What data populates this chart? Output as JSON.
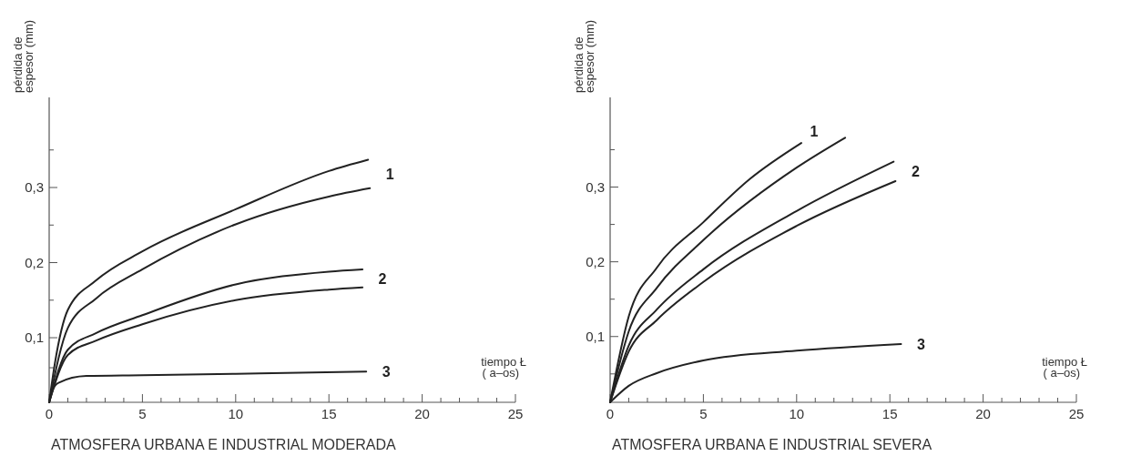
{
  "chart_data": [
    {
      "type": "line",
      "title": "ATMOSFERA URBANA E INDUSTRIAL MODERADA",
      "xlabel": "tiempo Ł\n( a–os)",
      "ylabel": "pérdida de\nespesor (mm)",
      "xlim": [
        0,
        25
      ],
      "ylim": [
        0.014,
        0.42
      ],
      "xticks": [
        0,
        {
          "value": 1,
          "label": null
        },
        {
          "value": 2,
          "label": null
        },
        {
          "value": 3,
          "label": null
        },
        {
          "value": 4,
          "label": null
        },
        5,
        {
          "value": 6,
          "label": null
        },
        {
          "value": 7,
          "label": null
        },
        {
          "value": 8,
          "label": null
        },
        {
          "value": 9,
          "label": null
        },
        10,
        {
          "value": 11,
          "label": null
        },
        {
          "value": 12,
          "label": null
        },
        {
          "value": 13,
          "label": null
        },
        {
          "value": 14,
          "label": null
        },
        15,
        {
          "value": 16,
          "label": null
        },
        {
          "value": 17,
          "label": null
        },
        {
          "value": 18,
          "label": null
        },
        {
          "value": 19,
          "label": null
        },
        20,
        {
          "value": 21,
          "label": null
        },
        {
          "value": 22,
          "label": null
        },
        {
          "value": 23,
          "label": null
        },
        {
          "value": 24,
          "label": null
        },
        25
      ],
      "yticks": [
        {
          "value": 0.06,
          "label": null
        },
        {
          "value": 0.1,
          "label": "0,1"
        },
        {
          "value": 0.15,
          "label": null
        },
        {
          "value": 0.2,
          "label": "0,2"
        },
        {
          "value": 0.25,
          "label": null
        },
        {
          "value": 0.3,
          "label": "0,3"
        },
        {
          "value": 0.35,
          "label": null
        }
      ],
      "grid": false,
      "line_style": "solid",
      "series": [
        {
          "color": "#222222",
          "x": [
            0,
            0.3,
            1,
            2.5,
            5,
            10,
            15,
            17.1
          ],
          "values": [
            0.014,
            0.065,
            0.137,
            0.176,
            0.215,
            0.271,
            0.322,
            0.337
          ]
        },
        {
          "color": "#222222",
          "x": [
            0,
            1,
            2.5,
            5,
            10,
            15,
            17.2
          ],
          "values": [
            0.014,
            0.113,
            0.152,
            0.191,
            0.251,
            0.288,
            0.299
          ]
        },
        {
          "color": "#222222",
          "x": [
            0,
            1,
            2.5,
            5,
            10,
            15,
            16.8
          ],
          "values": [
            0.014,
            0.084,
            0.106,
            0.13,
            0.171,
            0.188,
            0.191
          ]
        },
        {
          "color": "#222222",
          "x": [
            0,
            1,
            2.5,
            5,
            10,
            15,
            16.8
          ],
          "values": [
            0.014,
            0.077,
            0.096,
            0.118,
            0.15,
            0.164,
            0.167
          ]
        },
        {
          "color": "#222222",
          "x": [
            0,
            0.2,
            0.5,
            2,
            5,
            10,
            17
          ],
          "values": [
            0.014,
            0.031,
            0.04,
            0.049,
            0.05,
            0.052,
            0.055
          ]
        }
      ],
      "annotations": [
        "1",
        "2",
        "3"
      ]
    },
    {
      "type": "line",
      "title": "ATMOSFERA URBANA E INDUSTRIAL SEVERA",
      "xlabel": "tiempo Ł\n( a–os)",
      "ylabel": "pérdida de\nespesor (mm)",
      "xlim": [
        0,
        25
      ],
      "ylim": [
        0.012,
        0.42
      ],
      "xticks": [
        0,
        {
          "value": 1,
          "label": null
        },
        {
          "value": 2,
          "label": null
        },
        {
          "value": 3,
          "label": null
        },
        {
          "value": 4,
          "label": null
        },
        5,
        {
          "value": 6,
          "label": null
        },
        {
          "value": 7,
          "label": null
        },
        {
          "value": 8,
          "label": null
        },
        {
          "value": 9,
          "label": null
        },
        10,
        {
          "value": 11,
          "label": null
        },
        {
          "value": 12,
          "label": null
        },
        {
          "value": 13,
          "label": null
        },
        {
          "value": 14,
          "label": null
        },
        15,
        {
          "value": 16,
          "label": null
        },
        {
          "value": 17,
          "label": null
        },
        {
          "value": 18,
          "label": null
        },
        {
          "value": 19,
          "label": null
        },
        20,
        {
          "value": 21,
          "label": null
        },
        {
          "value": 22,
          "label": null
        },
        {
          "value": 23,
          "label": null
        },
        {
          "value": 24,
          "label": null
        },
        25
      ],
      "yticks": [
        {
          "value": 0.05,
          "label": null
        },
        {
          "value": 0.1,
          "label": "0,1"
        },
        {
          "value": 0.15,
          "label": null
        },
        {
          "value": 0.2,
          "label": "0,2"
        },
        {
          "value": 0.25,
          "label": null
        },
        {
          "value": 0.3,
          "label": "0,3"
        },
        {
          "value": 0.35,
          "label": null
        }
      ],
      "grid": false,
      "line_style": "solid",
      "series": [
        {
          "color": "#222222",
          "x": [
            0,
            1,
            2.5,
            5,
            7.5,
            10.25
          ],
          "values": [
            0.012,
            0.127,
            0.192,
            0.253,
            0.311,
            0.359
          ]
        },
        {
          "color": "#222222",
          "x": [
            0,
            1,
            2.5,
            5,
            10,
            12.6
          ],
          "values": [
            0.012,
            0.107,
            0.165,
            0.229,
            0.326,
            0.366
          ]
        },
        {
          "color": "#222222",
          "x": [
            0,
            1,
            2.5,
            5,
            10,
            15.2
          ],
          "values": [
            0.012,
            0.088,
            0.136,
            0.19,
            0.268,
            0.334
          ]
        },
        {
          "color": "#222222",
          "x": [
            0,
            1,
            2.5,
            5,
            10,
            15.3
          ],
          "values": [
            0.012,
            0.08,
            0.122,
            0.173,
            0.248,
            0.308
          ]
        },
        {
          "color": "#222222",
          "x": [
            0,
            1,
            2.5,
            5,
            10,
            15.6
          ],
          "values": [
            0.012,
            0.034,
            0.051,
            0.068,
            0.081,
            0.09
          ]
        }
      ],
      "annotations": [
        "1",
        "2",
        "3"
      ]
    }
  ]
}
